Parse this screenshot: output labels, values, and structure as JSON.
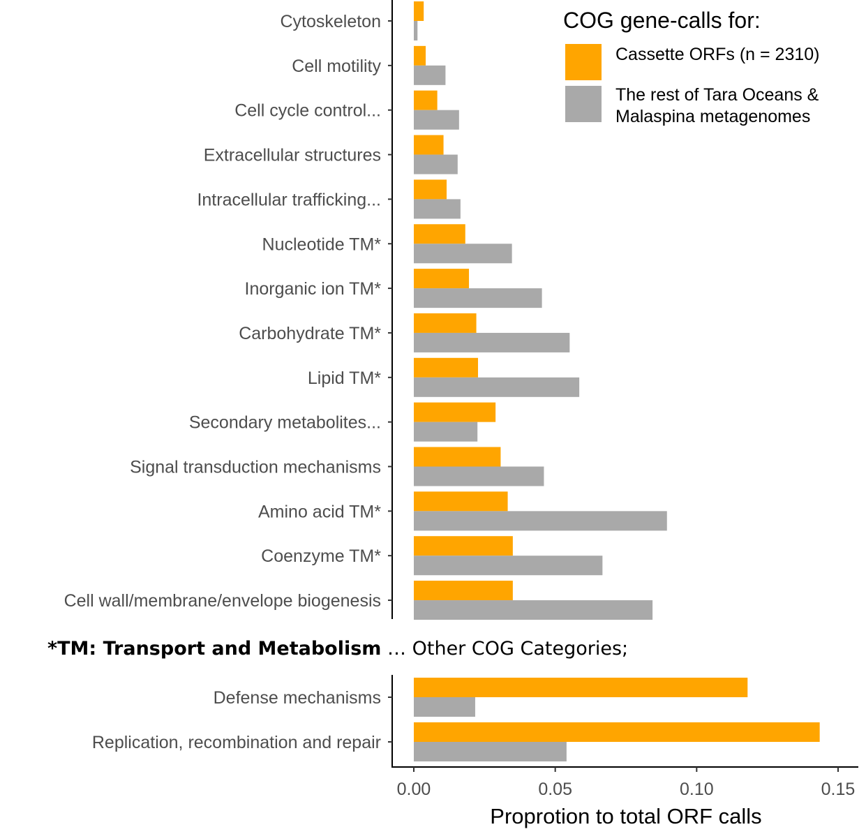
{
  "chart_data": [
    {
      "type": "bar",
      "orientation": "horizontal",
      "categories": [
        "Cytoskeleton",
        "Cell motility",
        "Cell cycle control...",
        "Extracellular structures",
        "Intracellular trafficking...",
        "Nucleotide TM*",
        "Inorganic ion TM*",
        "Carbohydrate TM*",
        "Lipid TM*",
        "Secondary metabolites...",
        "Signal transduction mechanisms",
        "Amino acid TM*",
        "Coenzyme TM*",
        "Cell wall/membrane/envelope biogenesis"
      ],
      "series": [
        {
          "name": "Cassette ORFs (n = 2310)",
          "values": [
            0.0035,
            0.0042,
            0.0083,
            0.0105,
            0.0116,
            0.0182,
            0.0195,
            0.0221,
            0.0227,
            0.0289,
            0.0307,
            0.0332,
            0.035,
            0.035
          ]
        },
        {
          "name": "The rest of Tara Oceans & Malaspina metagenomes",
          "values": [
            0.0013,
            0.0112,
            0.016,
            0.0155,
            0.0165,
            0.0347,
            0.0453,
            0.0551,
            0.0585,
            0.0225,
            0.046,
            0.0895,
            0.0667,
            0.0844
          ]
        }
      ],
      "xlim": [
        -0.0075,
        0.158
      ],
      "grid": false
    },
    {
      "type": "bar",
      "orientation": "horizontal",
      "categories": [
        "Defense mechanisms",
        "Replication, recombination and repair"
      ],
      "series": [
        {
          "name": "Cassette ORFs (n = 2310)",
          "values": [
            0.118,
            0.1435
          ]
        },
        {
          "name": "The rest of Tara Oceans & Malaspina metagenomes",
          "values": [
            0.0217,
            0.054
          ]
        }
      ],
      "xlim": [
        -0.0075,
        0.158
      ],
      "xticks": [
        "0.00",
        "0.05",
        "0.10",
        "0.15"
      ],
      "xlabel": "Proprotion to total ORF calls",
      "grid": false
    }
  ],
  "legend": {
    "title": "COG gene-calls for:",
    "entries": [
      {
        "label": "Cassette ORFs (n = 2310)",
        "color": "#FFA500"
      },
      {
        "label_line1": "The rest of Tara Oceans &",
        "label_line2": "Malaspina metagenomes",
        "color": "#A9A9A9"
      }
    ],
    "placement": "top-right"
  },
  "note": {
    "bold": "*TM: Transport and Metabolism",
    "normal": " … Other COG Categories;"
  },
  "colors": {
    "cassette": "#FFA500",
    "rest": "#A9A9A9",
    "axis": "#000000",
    "label": "#4d4d4d"
  }
}
